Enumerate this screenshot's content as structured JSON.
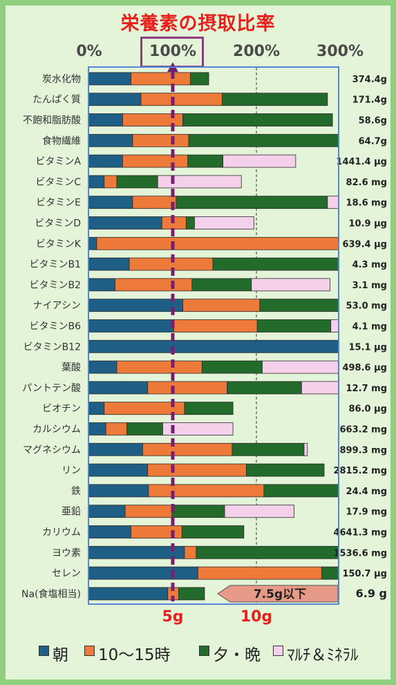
{
  "chart_data": {
    "type": "bar",
    "stacked": true,
    "title": "栄養素の摂取比率",
    "x_ticks": [
      "0%",
      "100%",
      "200%",
      "300%"
    ],
    "xlim": [
      0,
      300
    ],
    "series": [
      {
        "name": "朝",
        "color": "#1f5f86"
      },
      {
        "name": "10〜15時",
        "color": "#ee7a3a"
      },
      {
        "name": "夕・晩",
        "color": "#236b2a"
      },
      {
        "name": "ﾏﾙﾁ＆ﾐﾈﾗﾙ",
        "color": "#f4d0ea"
      }
    ],
    "rows": [
      {
        "label": "炭水化物",
        "total": "374.4g",
        "values": [
          50,
          71,
          22,
          0
        ]
      },
      {
        "label": "たんぱく質",
        "total": "171.4g",
        "values": [
          62,
          97,
          126,
          0
        ]
      },
      {
        "label": "不飽和脂肪酸",
        "total": "58.6g",
        "values": [
          40,
          72,
          179,
          0
        ]
      },
      {
        "label": "食物繊維",
        "total": "64.7g",
        "values": [
          52,
          67,
          181,
          0
        ]
      },
      {
        "label": "ビタミンA",
        "total": "1441.4 μg",
        "values": [
          40,
          78,
          42,
          87
        ]
      },
      {
        "label": "ビタミンC",
        "total": "82.6 mg",
        "values": [
          18,
          15,
          49,
          100
        ]
      },
      {
        "label": "ビタミンE",
        "total": "18.6 mg",
        "values": [
          52,
          52,
          181,
          15
        ]
      },
      {
        "label": "ビタミンD",
        "total": "10.9 μg",
        "values": [
          87,
          29,
          10,
          71
        ]
      },
      {
        "label": "ビタミンK",
        "total": "639.4 μg",
        "values": [
          9,
          291,
          0,
          0
        ]
      },
      {
        "label": "ビタミンB1",
        "total": "4.3 mg",
        "values": [
          48,
          100,
          152,
          0
        ]
      },
      {
        "label": "ビタミンB2",
        "total": "3.1 mg",
        "values": [
          31,
          92,
          71,
          94
        ]
      },
      {
        "label": "ナイアシン",
        "total": "53.0 mg",
        "values": [
          112,
          92,
          96,
          0
        ]
      },
      {
        "label": "ビタミンB6",
        "total": "4.1 mg",
        "values": [
          101,
          100,
          88,
          11
        ]
      },
      {
        "label": "ビタミンB12",
        "total": "15.1 μg",
        "values": [
          300,
          0,
          0,
          0
        ]
      },
      {
        "label": "葉酸",
        "total": "498.6 μg",
        "values": [
          33,
          102,
          72,
          93
        ]
      },
      {
        "label": "パントテン酸",
        "total": "12.7 mg",
        "values": [
          70,
          95,
          89,
          46
        ]
      },
      {
        "label": "ビオチン",
        "total": "86.0 μg",
        "values": [
          18,
          96,
          58,
          0
        ]
      },
      {
        "label": "カルシウム",
        "total": "663.2 mg",
        "values": [
          20,
          25,
          43,
          84
        ]
      },
      {
        "label": "マグネシウム",
        "total": "899.3 mg",
        "values": [
          64,
          107,
          86,
          4
        ]
      },
      {
        "label": "リン",
        "total": "2815.2 mg",
        "values": [
          70,
          118,
          93,
          0
        ]
      },
      {
        "label": "鉄",
        "total": "24.4 mg",
        "values": [
          71,
          138,
          91,
          0
        ]
      },
      {
        "label": "亜鉛",
        "total": "17.9 mg",
        "values": [
          43,
          56,
          63,
          83
        ]
      },
      {
        "label": "カリウム",
        "total": "4641.3 mg",
        "values": [
          50,
          61,
          74,
          0
        ]
      },
      {
        "label": "ヨウ素",
        "total": "1536.6 mg",
        "values": [
          114,
          14,
          172,
          0
        ]
      },
      {
        "label": "セレン",
        "total": "150.7 μg",
        "values": [
          130,
          148,
          22,
          0
        ]
      },
      {
        "label": "Na(食塩相当)",
        "total": "6.9 g",
        "values": [
          94,
          13,
          31,
          0
        ]
      }
    ],
    "reference_line": {
      "value": 100
    },
    "salt_ticks": [
      "5g",
      "10g"
    ],
    "salt_callout": "7.5g以下"
  },
  "colors": {
    "title": "#e8201c",
    "reference_line": "#7a1f6e",
    "salt_arrow": "#e89a88"
  }
}
